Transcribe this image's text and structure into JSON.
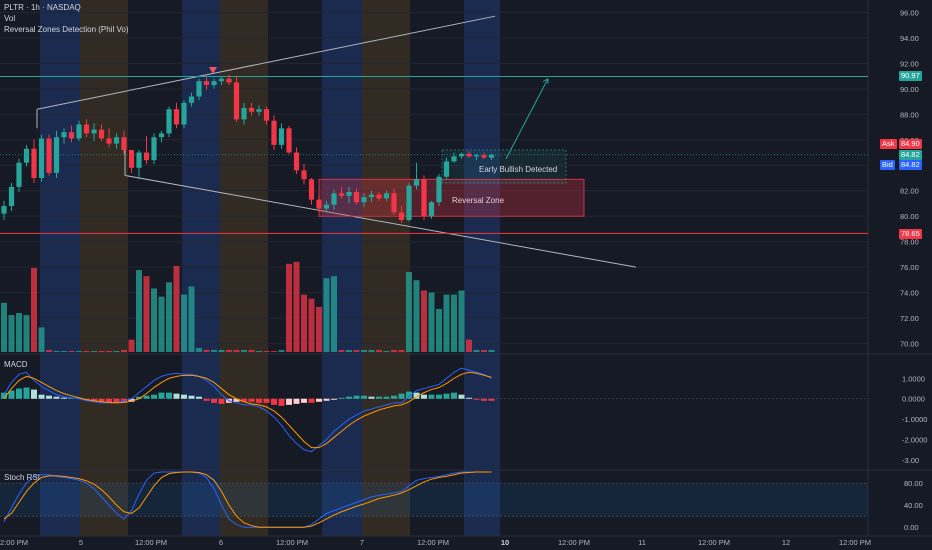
{
  "header": {
    "symbol_line": "PLTR · 1h · NASDAQ",
    "volume_label": "Vol",
    "indicator_label": "Reversal Zones Detection (Phil Vo)"
  },
  "panes": {
    "macd_label": "MACD",
    "stoch_label": "Stoch RSI"
  },
  "annotations": {
    "reversal_zone": "Reversal Zone",
    "early_bullish": "Early Bullish Detected"
  },
  "quote": {
    "ask_label": "Ask",
    "ask_value": "84.90",
    "last_value": "84.82",
    "bid_label": "Bid",
    "bid_value": "84.82",
    "resistance_value": "90.97",
    "support_value": "78.65"
  },
  "colors": {
    "up": "#26a69a",
    "down": "#f23645",
    "resistance": "#26a69a",
    "support": "#f23645",
    "macd_line": "#2962ff",
    "signal_line": "#ff9800",
    "blue_band": "#1f3a72",
    "orange_band": "#4a3a22"
  },
  "chart_data": {
    "type": "candlestick",
    "price_axis": {
      "ticks": [
        "96.00",
        "94.00",
        "92.00",
        "90.00",
        "88.00",
        "86.00",
        "84.00",
        "82.00",
        "80.00",
        "78.00",
        "76.00",
        "74.00",
        "72.00",
        "70.00"
      ],
      "ylim": [
        69.5,
        96.5
      ]
    },
    "macd_axis": {
      "ticks": [
        "1.0000",
        "0.0000",
        "-1.0000",
        "-2.0000",
        "-3.00"
      ],
      "ylim": [
        -3.4,
        2.0
      ]
    },
    "stoch_axis": {
      "ticks": [
        "80.00",
        "40.00",
        "0.00"
      ],
      "ylim": [
        -5,
        100
      ]
    },
    "x_axis": {
      "labels": [
        "2:00 PM",
        "5",
        "12:00 PM",
        "6",
        "12:00 PM",
        "7",
        "12:00 PM",
        "10",
        "12:00 PM",
        "11",
        "12:00 PM",
        "12",
        "12:00 PM"
      ]
    },
    "resistance": 90.97,
    "support": 78.65,
    "candles": [
      [
        80.2,
        81.2,
        79.7,
        80.8
      ],
      [
        80.8,
        82.6,
        80.4,
        82.3
      ],
      [
        82.3,
        84.5,
        81.9,
        84.2
      ],
      [
        84.2,
        85.6,
        83.9,
        85.3
      ],
      [
        85.3,
        86.0,
        82.6,
        83.0
      ],
      [
        83.0,
        86.4,
        82.7,
        86.1
      ],
      [
        86.1,
        86.4,
        83.2,
        83.4
      ],
      [
        83.4,
        86.7,
        83.0,
        86.2
      ],
      [
        86.2,
        86.9,
        85.7,
        86.6
      ],
      [
        86.6,
        87.1,
        85.8,
        86.1
      ],
      [
        86.1,
        87.5,
        85.9,
        87.2
      ],
      [
        87.2,
        87.6,
        86.2,
        86.5
      ],
      [
        86.5,
        87.3,
        85.9,
        86.8
      ],
      [
        86.8,
        87.2,
        85.9,
        86.1
      ],
      [
        86.1,
        86.9,
        85.4,
        85.7
      ],
      [
        85.7,
        86.5,
        85.3,
        86.2
      ],
      [
        86.2,
        86.7,
        84.9,
        85.2
      ],
      [
        85.2,
        85.1,
        83.4,
        83.8
      ],
      [
        83.8,
        85.2,
        82.9,
        85.0
      ],
      [
        85.0,
        86.3,
        84.1,
        84.4
      ],
      [
        84.4,
        86.5,
        84.1,
        86.2
      ],
      [
        86.2,
        86.7,
        85.8,
        86.5
      ],
      [
        86.5,
        88.6,
        86.2,
        88.4
      ],
      [
        88.4,
        88.9,
        86.9,
        87.2
      ],
      [
        87.2,
        89.1,
        86.9,
        88.9
      ],
      [
        88.9,
        89.7,
        88.6,
        89.4
      ],
      [
        89.4,
        90.8,
        89.1,
        90.6
      ],
      [
        90.6,
        90.9,
        89.9,
        90.3
      ],
      [
        90.3,
        90.8,
        90.0,
        90.6
      ],
      [
        90.6,
        91.0,
        90.3,
        90.8
      ],
      [
        90.8,
        91.1,
        90.3,
        90.5
      ],
      [
        90.5,
        91.0,
        87.4,
        87.6
      ],
      [
        87.6,
        88.9,
        87.2,
        88.5
      ],
      [
        88.5,
        88.9,
        87.9,
        88.2
      ],
      [
        88.2,
        88.7,
        87.9,
        88.4
      ],
      [
        88.4,
        88.6,
        87.2,
        87.5
      ],
      [
        87.5,
        87.9,
        85.2,
        85.6
      ],
      [
        85.6,
        87.3,
        85.3,
        86.9
      ],
      [
        86.9,
        87.1,
        84.9,
        85.0
      ],
      [
        85.0,
        85.4,
        83.3,
        83.6
      ],
      [
        83.6,
        84.1,
        82.5,
        82.9
      ],
      [
        82.9,
        83.0,
        80.9,
        81.3
      ],
      [
        81.3,
        81.7,
        80.3,
        80.6
      ],
      [
        80.6,
        81.2,
        80.3,
        80.9
      ],
      [
        80.9,
        82.1,
        80.5,
        81.8
      ],
      [
        81.8,
        82.3,
        81.4,
        81.6
      ],
      [
        81.6,
        82.3,
        81.0,
        81.9
      ],
      [
        81.9,
        82.2,
        80.9,
        81.1
      ],
      [
        81.1,
        81.8,
        80.7,
        81.5
      ],
      [
        81.5,
        82.0,
        81.1,
        81.7
      ],
      [
        81.7,
        81.9,
        81.2,
        81.4
      ],
      [
        81.4,
        82.0,
        81.2,
        81.8
      ],
      [
        81.8,
        82.2,
        80.1,
        80.3
      ],
      [
        80.3,
        80.8,
        79.5,
        79.7
      ],
      [
        79.7,
        82.6,
        79.6,
        82.4
      ],
      [
        82.4,
        84.2,
        82.1,
        82.9
      ],
      [
        82.9,
        83.2,
        79.7,
        80.0
      ],
      [
        80.0,
        81.2,
        79.8,
        81.1
      ],
      [
        81.1,
        83.3,
        80.8,
        83.1
      ],
      [
        83.1,
        84.6,
        82.9,
        84.3
      ],
      [
        84.3,
        85.0,
        84.2,
        84.7
      ],
      [
        84.7,
        85.0,
        84.5,
        84.9
      ],
      [
        84.9,
        85.1,
        84.6,
        84.7
      ],
      [
        84.7,
        84.9,
        84.4,
        84.8
      ],
      [
        84.8,
        85.0,
        84.5,
        84.6
      ],
      [
        84.6,
        84.9,
        84.4,
        84.82
      ]
    ],
    "volume": [
      24,
      18,
      19,
      18,
      41,
      12,
      1,
      0.5,
      0.5,
      0.5,
      0.5,
      0.5,
      0.5,
      0.5,
      0.5,
      0.5,
      1,
      6,
      40,
      37,
      31,
      27,
      34,
      42,
      28,
      32,
      2,
      1,
      1,
      1,
      1,
      1,
      1,
      1,
      0.5,
      0.5,
      0.5,
      1,
      43,
      44,
      28,
      26,
      22,
      36,
      37,
      1,
      1,
      1,
      1,
      1,
      1,
      0.5,
      1,
      1,
      39,
      35,
      30,
      29,
      21,
      28,
      28,
      30,
      6,
      1,
      1,
      1
    ],
    "macd": [
      0.3,
      0.4,
      0.5,
      0.55,
      0.45,
      0.2,
      0.15,
      0.1,
      0.05,
      0.05,
      0.05,
      -0.05,
      -0.1,
      -0.15,
      -0.2,
      -0.2,
      -0.2,
      -0.15,
      0.1,
      0.15,
      0.2,
      0.3,
      0.3,
      0.25,
      0.2,
      0.15,
      0.1,
      -0.1,
      -0.2,
      -0.25,
      -0.2,
      -0.15,
      -0.15,
      -0.15,
      -0.2,
      -0.2,
      -0.3,
      -0.35,
      -0.3,
      -0.25,
      -0.2,
      -0.2,
      -0.15,
      -0.1,
      -0.05,
      0.05,
      0.1,
      0.15,
      0.15,
      0.1,
      0.1,
      0.1,
      0.15,
      0.25,
      0.35,
      0.3,
      0.2,
      0.2,
      0.2,
      0.25,
      0.3,
      0.2,
      0.05,
      -0.05,
      -0.1,
      -0.1
    ],
    "macd_line": [
      0.2,
      0.8,
      1.2,
      1.3,
      0.9,
      0.6,
      0.4,
      0.2,
      0.1,
      0.05,
      0.0,
      -0.1,
      -0.15,
      -0.2,
      -0.2,
      -0.2,
      -0.1,
      0.0,
      0.3,
      0.6,
      0.9,
      1.1,
      1.2,
      1.25,
      1.2,
      1.2,
      1.1,
      0.9,
      0.6,
      0.2,
      -0.1,
      -0.2,
      -0.3,
      -0.3,
      -0.4,
      -0.6,
      -0.9,
      -1.3,
      -1.8,
      -2.2,
      -2.5,
      -2.6,
      -2.3,
      -2.0,
      -1.6,
      -1.3,
      -1.0,
      -0.8,
      -0.6,
      -0.5,
      -0.4,
      -0.3,
      -0.2,
      -0.2,
      0.1,
      0.4,
      0.5,
      0.6,
      0.7,
      1.0,
      1.3,
      1.5,
      1.4,
      1.3,
      1.2,
      1.0
    ],
    "signal_line": [
      0.0,
      0.5,
      0.9,
      1.1,
      1.0,
      0.8,
      0.6,
      0.4,
      0.25,
      0.15,
      0.05,
      -0.05,
      -0.1,
      -0.15,
      -0.18,
      -0.2,
      -0.18,
      -0.12,
      0.0,
      0.25,
      0.55,
      0.8,
      1.0,
      1.1,
      1.15,
      1.15,
      1.1,
      1.0,
      0.8,
      0.5,
      0.2,
      0.0,
      -0.15,
      -0.25,
      -0.3,
      -0.4,
      -0.6,
      -0.9,
      -1.3,
      -1.7,
      -2.1,
      -2.4,
      -2.4,
      -2.2,
      -1.9,
      -1.6,
      -1.3,
      -1.05,
      -0.85,
      -0.7,
      -0.55,
      -0.45,
      -0.35,
      -0.3,
      -0.15,
      0.1,
      0.3,
      0.45,
      0.55,
      0.75,
      1.0,
      1.2,
      1.3,
      1.25,
      1.15,
      1.05
    ],
    "stoch_k": [
      10,
      35,
      60,
      80,
      92,
      95,
      95,
      92,
      90,
      88,
      85,
      80,
      70,
      55,
      40,
      25,
      15,
      30,
      60,
      85,
      98,
      100,
      100,
      100,
      100,
      100,
      98,
      90,
      70,
      40,
      15,
      5,
      0,
      0,
      0,
      0,
      0,
      0,
      0,
      0,
      0,
      5,
      15,
      25,
      30,
      35,
      40,
      45,
      50,
      55,
      58,
      60,
      62,
      65,
      75,
      85,
      88,
      90,
      92,
      95,
      98,
      100,
      100,
      100,
      100,
      100
    ],
    "stoch_d": [
      15,
      25,
      45,
      65,
      80,
      90,
      93,
      93,
      92,
      90,
      88,
      84,
      78,
      68,
      55,
      40,
      28,
      25,
      35,
      55,
      75,
      90,
      97,
      99,
      100,
      100,
      99,
      95,
      85,
      65,
      40,
      20,
      8,
      3,
      0,
      0,
      0,
      0,
      0,
      0,
      0,
      2,
      8,
      15,
      22,
      28,
      33,
      38,
      42,
      47,
      52,
      55,
      58,
      62,
      68,
      75,
      82,
      87,
      90,
      92,
      95,
      98,
      99,
      100,
      100,
      100
    ]
  }
}
